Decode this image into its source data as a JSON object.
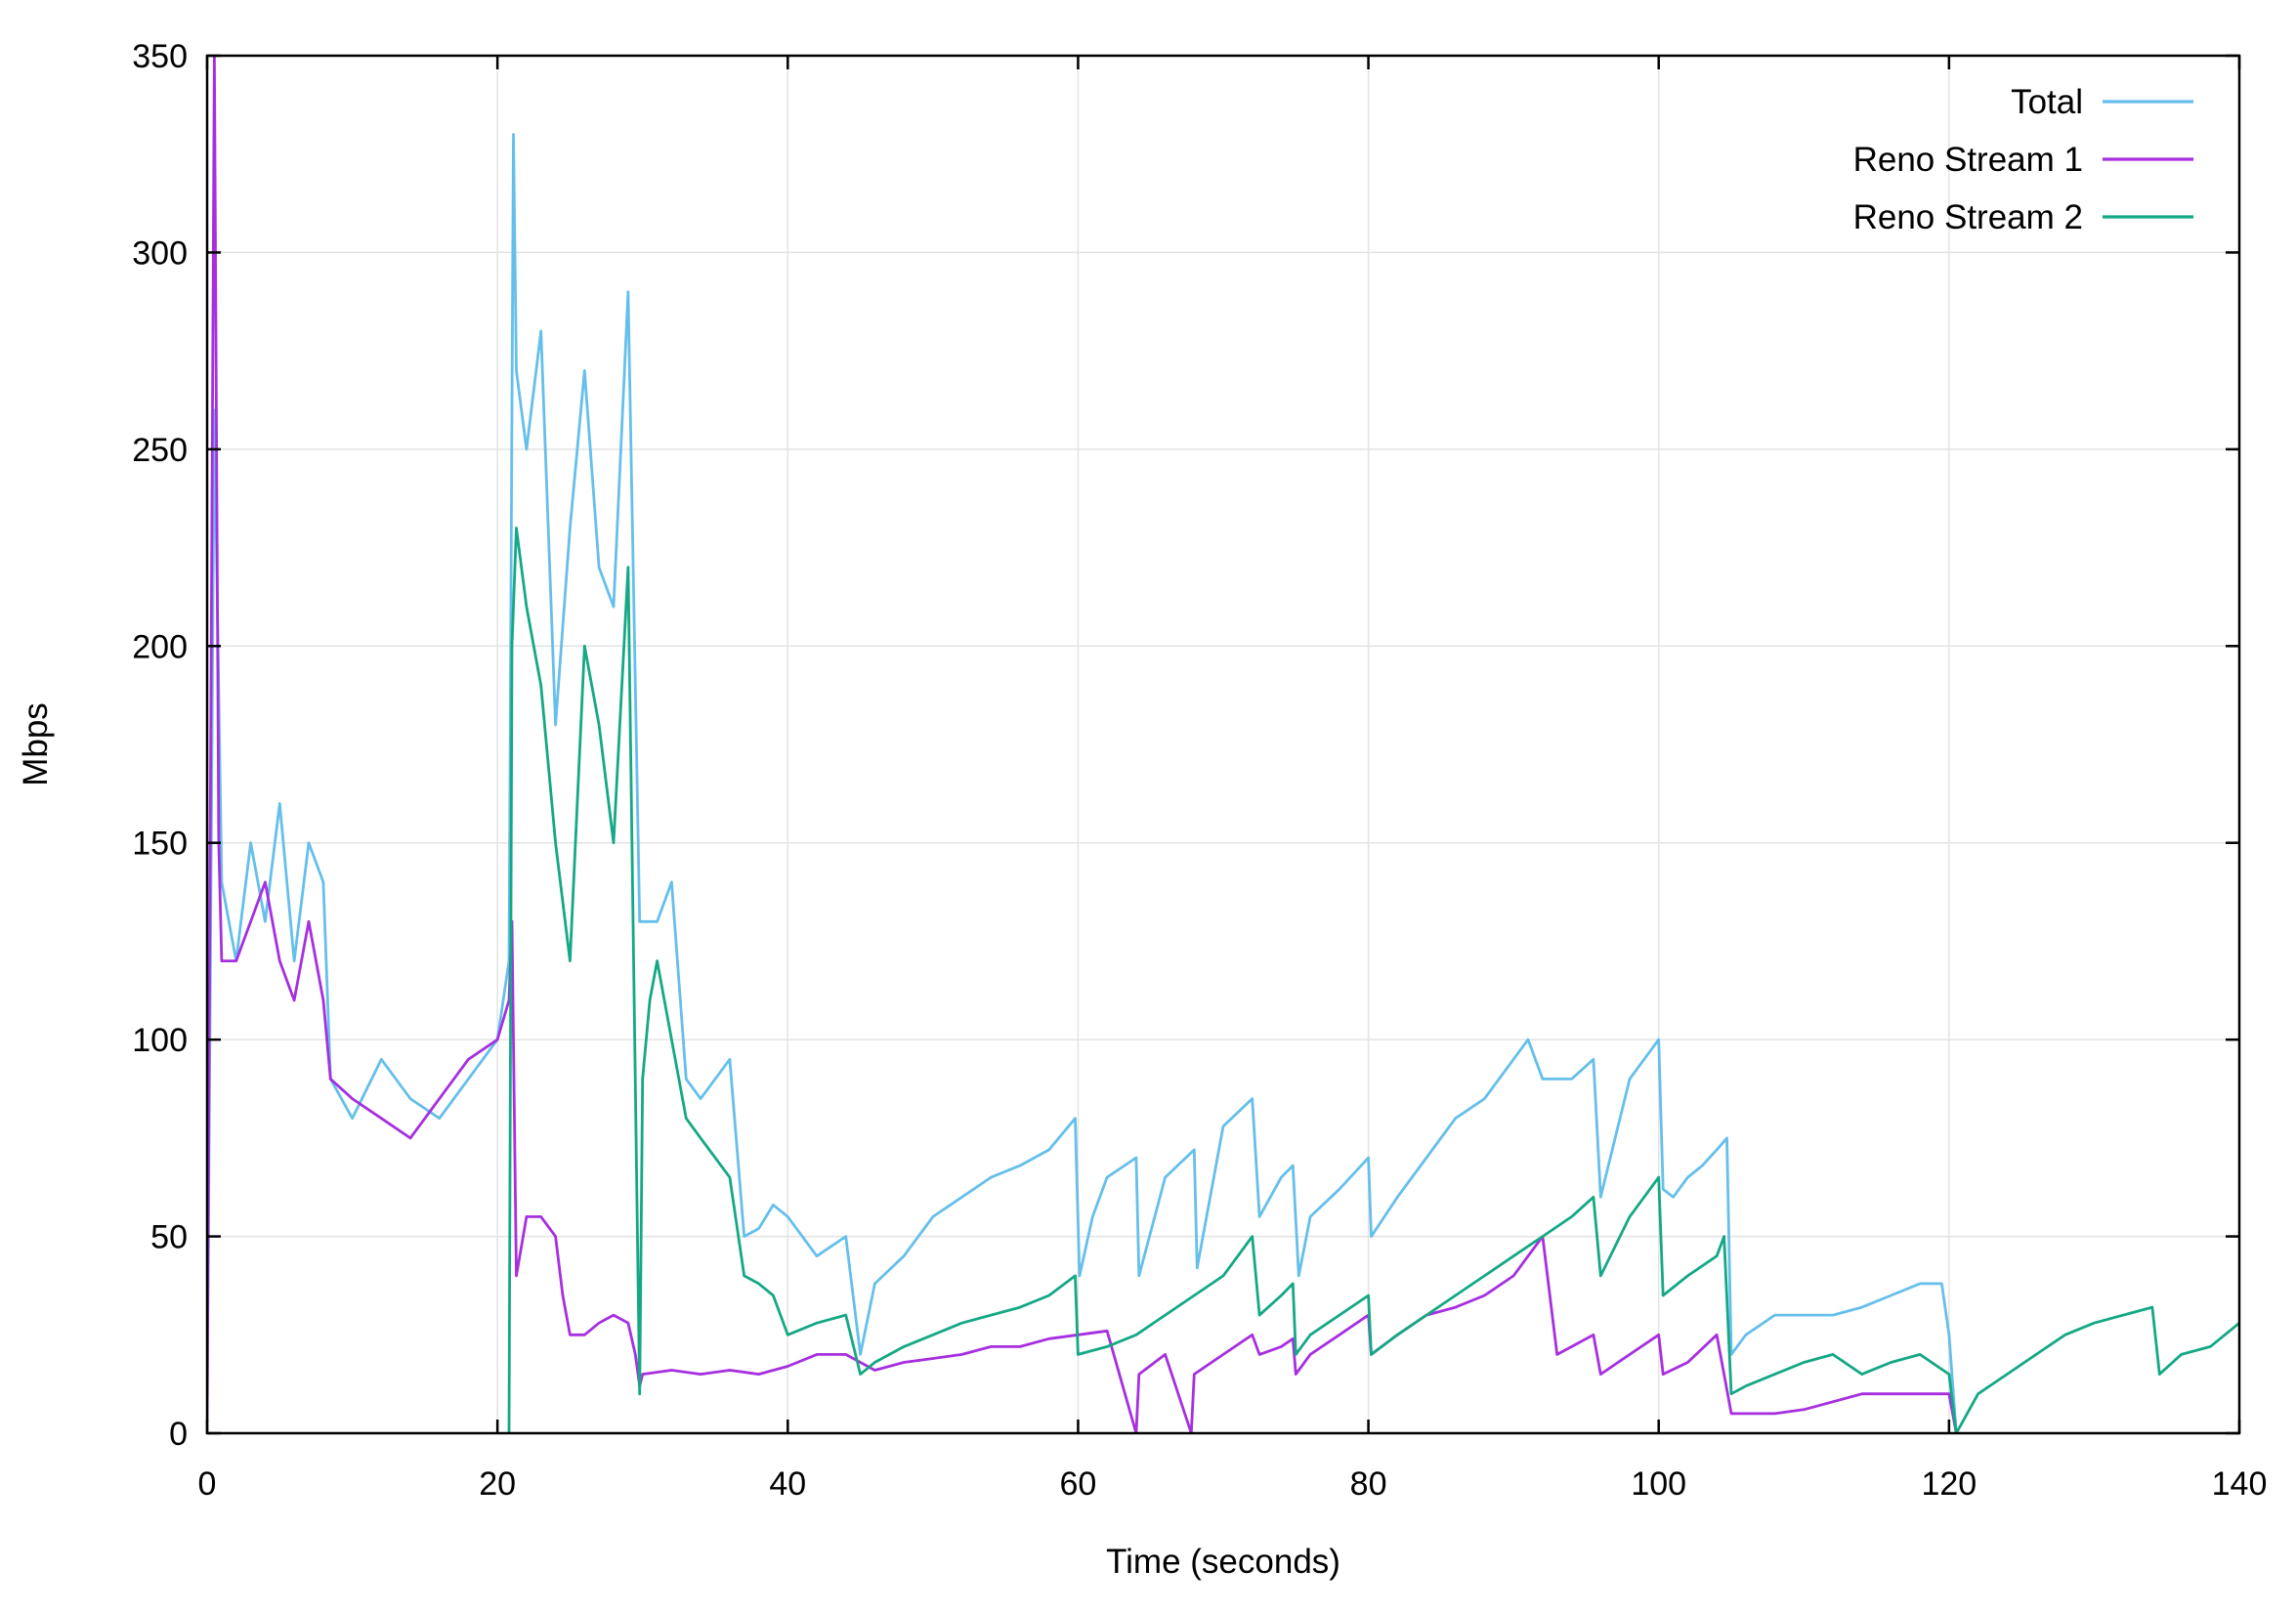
{
  "chart_data": {
    "type": "line",
    "title": "",
    "xlabel": "Time (seconds)",
    "ylabel": "Mbps",
    "xlim": [
      0,
      140
    ],
    "ylim": [
      0,
      350
    ],
    "xticks": [
      0,
      20,
      40,
      60,
      80,
      100,
      120,
      140
    ],
    "yticks": [
      0,
      50,
      100,
      150,
      200,
      250,
      300,
      350
    ],
    "grid": true,
    "legend_position": "top-right",
    "series": [
      {
        "name": "Total",
        "color": "#65bfeb",
        "x": [
          0,
          0.5,
          1,
          2,
          3,
          4,
          5,
          6,
          7,
          8,
          8.5,
          10,
          12,
          14,
          16,
          18,
          20,
          20.8,
          21.1,
          21.3,
          22,
          23,
          24,
          25,
          26,
          27,
          28,
          29,
          29.8,
          30.2,
          31,
          32,
          33,
          34,
          35,
          36,
          37,
          38,
          39,
          40,
          42,
          44,
          45,
          46,
          48,
          50,
          52,
          54,
          56,
          58,
          59.8,
          60.1,
          61,
          62,
          64,
          64.2,
          66,
          68,
          68.2,
          70,
          72,
          72.5,
          74,
          74.8,
          75.2,
          76,
          78,
          80,
          80.2,
          82,
          84,
          86,
          88,
          90,
          91,
          92,
          94,
          95.5,
          96,
          98,
          100,
          100.3,
          101,
          102,
          103,
          104,
          104.7,
          105,
          106,
          108,
          110,
          112,
          114,
          116,
          118,
          119.5,
          120,
          120.5
        ],
        "y": [
          3,
          260,
          140,
          120,
          150,
          130,
          160,
          120,
          150,
          140,
          90,
          80,
          95,
          85,
          80,
          90,
          100,
          120,
          330,
          270,
          250,
          280,
          180,
          230,
          270,
          220,
          210,
          290,
          130,
          130,
          130,
          140,
          90,
          85,
          90,
          95,
          50,
          52,
          58,
          55,
          45,
          50,
          20,
          38,
          45,
          55,
          60,
          65,
          68,
          72,
          80,
          40,
          55,
          65,
          70,
          40,
          65,
          72,
          42,
          78,
          85,
          55,
          65,
          68,
          40,
          55,
          62,
          70,
          50,
          60,
          70,
          80,
          85,
          95,
          100,
          90,
          90,
          95,
          60,
          90,
          100,
          62,
          60,
          65,
          68,
          72,
          75,
          20,
          25,
          30,
          30,
          30,
          32,
          35,
          38,
          38,
          25,
          0
        ]
      },
      {
        "name": "Reno Stream 1",
        "color": "#a62fdf",
        "x": [
          0,
          0.5,
          0.8,
          1,
          2,
          3,
          4,
          5,
          6,
          7,
          8,
          8.5,
          10,
          12,
          14,
          16,
          18,
          20,
          20.8,
          21,
          21.3,
          22,
          23,
          24,
          24.5,
          25,
          26,
          27,
          28,
          29,
          29.5,
          29.8,
          30,
          32,
          34,
          36,
          38,
          40,
          42,
          44,
          46,
          48,
          50,
          52,
          54,
          56,
          58,
          60,
          62,
          64,
          64.2,
          66,
          67.8,
          68,
          70,
          72,
          72.5,
          74,
          74.8,
          75,
          76,
          78,
          80,
          80.2,
          82,
          84,
          86,
          88,
          90,
          91,
          92,
          93,
          94,
          95.5,
          96,
          98,
          100,
          100.3,
          102,
          104,
          104.5,
          105,
          106,
          108,
          110,
          112,
          114,
          116,
          118,
          120,
          120.5
        ],
        "y": [
          3,
          350,
          150,
          120,
          120,
          130,
          140,
          120,
          110,
          130,
          110,
          90,
          85,
          80,
          75,
          85,
          95,
          100,
          110,
          130,
          40,
          55,
          55,
          50,
          35,
          25,
          25,
          28,
          30,
          28,
          20,
          12,
          15,
          16,
          15,
          16,
          15,
          17,
          20,
          20,
          16,
          18,
          19,
          20,
          22,
          22,
          24,
          25,
          26,
          0,
          15,
          20,
          0,
          15,
          20,
          25,
          20,
          22,
          24,
          15,
          20,
          25,
          30,
          20,
          25,
          30,
          32,
          35,
          40,
          45,
          50,
          20,
          22,
          25,
          15,
          20,
          25,
          15,
          18,
          25,
          15,
          5,
          5,
          5,
          6,
          8,
          10,
          10,
          10,
          10,
          0
        ]
      },
      {
        "name": "Reno Stream 2",
        "color": "#15a884",
        "x": [
          20.8,
          21,
          21.3,
          22,
          23,
          24,
          25,
          26,
          27,
          28,
          29,
          29.8,
          30,
          30.5,
          31,
          32,
          33,
          34,
          35,
          36,
          37,
          38,
          39,
          40,
          42,
          44,
          45,
          46,
          48,
          50,
          52,
          54,
          56,
          58,
          59.8,
          60,
          62,
          64,
          66,
          68,
          70,
          72,
          72.5,
          74,
          74.8,
          75,
          76,
          78,
          80,
          80.2,
          82,
          84,
          86,
          88,
          90,
          92,
          94,
          95.5,
          96,
          98,
          100,
          100.3,
          102,
          104,
          104.5,
          105,
          106,
          108,
          110,
          112,
          114,
          116,
          118,
          120,
          120.5,
          122,
          124,
          126,
          128,
          130,
          132,
          134,
          134.5,
          136,
          138,
          140
        ],
        "y": [
          0,
          200,
          230,
          210,
          190,
          150,
          120,
          200,
          180,
          150,
          220,
          10,
          90,
          110,
          120,
          100,
          80,
          75,
          70,
          65,
          40,
          38,
          35,
          25,
          28,
          30,
          15,
          18,
          22,
          25,
          28,
          30,
          32,
          35,
          40,
          20,
          22,
          25,
          30,
          35,
          40,
          50,
          30,
          35,
          38,
          20,
          25,
          30,
          35,
          20,
          25,
          30,
          35,
          40,
          45,
          50,
          55,
          60,
          40,
          55,
          65,
          35,
          40,
          45,
          50,
          10,
          12,
          15,
          18,
          20,
          15,
          18,
          20,
          15,
          0,
          10,
          15,
          20,
          25,
          28,
          30,
          32,
          15,
          20,
          22,
          28
        ]
      }
    ]
  }
}
